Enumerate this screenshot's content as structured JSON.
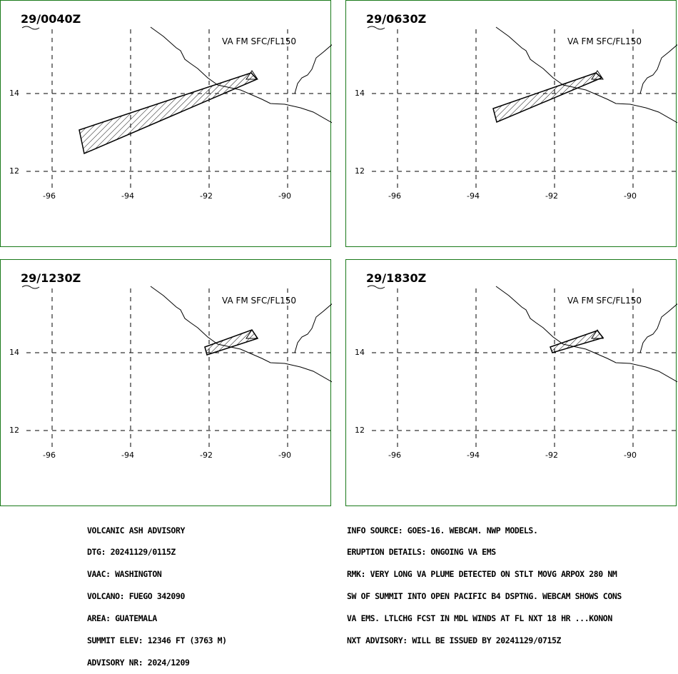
{
  "panels": [
    {
      "time": "29/0040Z",
      "level": "VA FM SFC/FL150"
    },
    {
      "time": "29/0630Z",
      "level": "VA FM SFC/FL150"
    },
    {
      "time": "29/1230Z",
      "level": "VA FM SFC/FL150"
    },
    {
      "time": "29/1830Z",
      "level": "VA FM SFC/FL150"
    }
  ],
  "lat_labels": [
    "14",
    "12"
  ],
  "lon_labels": [
    "-96",
    "-94",
    "-92",
    "-90"
  ],
  "advisory_left": [
    "VOLCANIC ASH ADVISORY",
    "DTG: 20241129/0115Z",
    "VAAC: WASHINGTON",
    "VOLCANO: FUEGO 342090",
    "AREA: GUATEMALA",
    "SUMMIT ELEV: 12346 FT (3763 M)",
    "ADVISORY NR: 2024/1209"
  ],
  "advisory_right": [
    "INFO SOURCE: GOES-16. WEBCAM. NWP MODELS.",
    "ERUPTION DETAILS: ONGOING VA EMS",
    "RMK: VERY LONG VA PLUME DETECTED ON STLT MOVG ARPOX 280 NM",
    "SW OF SUMMIT INTO OPEN PACIFIC B4 DSPTNG. WEBCAM SHOWS CONS",
    "VA EMS. LTLCHG FCST IN MDL WINDS AT FL NXT 18 HR ...KONON",
    "NXT ADVISORY: WILL BE ISSUED BY 20241129/0715Z"
  ],
  "colors": {
    "panel_border": "#1a7a1a",
    "lines": "#000000"
  }
}
